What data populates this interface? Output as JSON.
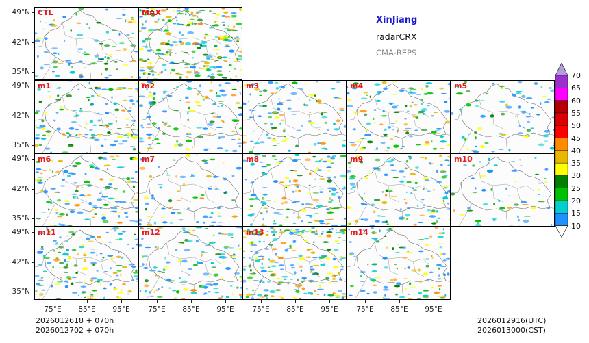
{
  "title": {
    "region": "XinJiang",
    "variable": "radarCRX",
    "model": "CMA-REPS"
  },
  "panels": [
    {
      "label": "CTL",
      "row": 0,
      "col": 0,
      "intensity": 0.25
    },
    {
      "label": "MAX",
      "row": 0,
      "col": 1,
      "intensity": 1.0
    },
    {
      "label": "m1",
      "row": 1,
      "col": 0,
      "intensity": 0.45
    },
    {
      "label": "m2",
      "row": 1,
      "col": 1,
      "intensity": 0.4
    },
    {
      "label": "m3",
      "row": 1,
      "col": 2,
      "intensity": 0.35
    },
    {
      "label": "m4",
      "row": 1,
      "col": 3,
      "intensity": 0.4
    },
    {
      "label": "m5",
      "row": 1,
      "col": 4,
      "intensity": 0.2
    },
    {
      "label": "m6",
      "row": 2,
      "col": 0,
      "intensity": 0.5
    },
    {
      "label": "m7",
      "row": 2,
      "col": 1,
      "intensity": 0.15
    },
    {
      "label": "m8",
      "row": 2,
      "col": 2,
      "intensity": 0.5
    },
    {
      "label": "m9",
      "row": 2,
      "col": 3,
      "intensity": 0.4
    },
    {
      "label": "m10",
      "row": 2,
      "col": 4,
      "intensity": 0.1
    },
    {
      "label": "m11",
      "row": 3,
      "col": 0,
      "intensity": 0.55
    },
    {
      "label": "m12",
      "row": 3,
      "col": 1,
      "intensity": 0.45
    },
    {
      "label": "m13",
      "row": 3,
      "col": 2,
      "intensity": 0.85
    },
    {
      "label": "m14",
      "row": 3,
      "col": 3,
      "intensity": 0.35
    }
  ],
  "axes": {
    "lat_labels": [
      "49°N",
      "42°N",
      "35°N"
    ],
    "lon_labels": [
      "75°E",
      "85°E",
      "95°E"
    ]
  },
  "time": {
    "init_utc": "2026012618  +  070h",
    "init_cst": "2026012702  +  070h",
    "valid_utc": "2026012916(UTC)",
    "valid_cst": "2026013000(CST)"
  },
  "colorbar": {
    "levels": [
      "10",
      "15",
      "20",
      "25",
      "30",
      "35",
      "40",
      "45",
      "50",
      "55",
      "60",
      "65",
      "70"
    ],
    "colors": [
      "#1e90ff",
      "#00ced1",
      "#00c000",
      "#008000",
      "#ffff00",
      "#e6b800",
      "#ff8c00",
      "#ff0000",
      "#dc0000",
      "#b40000",
      "#ff00ff",
      "#9932cc",
      "#b39ddb"
    ]
  }
}
